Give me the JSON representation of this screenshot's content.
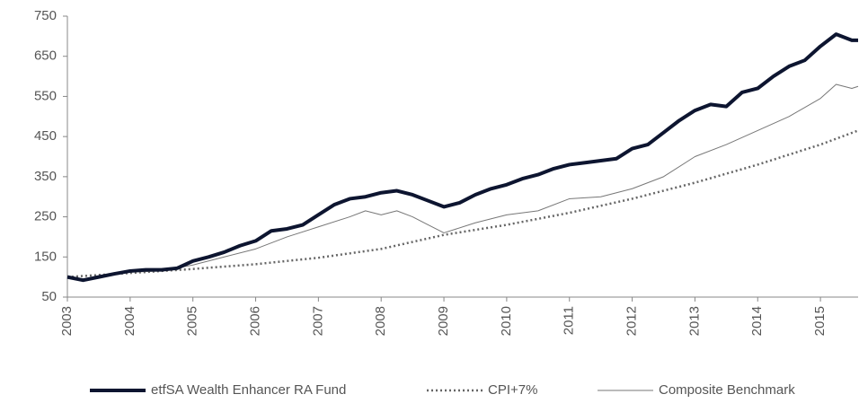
{
  "chart_data": {
    "type": "line",
    "xlim": [
      2003,
      2015.6
    ],
    "xticks": [
      2003,
      2004,
      2005,
      2006,
      2007,
      2008,
      2009,
      2010,
      2011,
      2012,
      2013,
      2014,
      2015
    ],
    "ylim": [
      50,
      750
    ],
    "yticks": [
      50,
      150,
      250,
      350,
      450,
      550,
      650,
      750
    ],
    "legend": "bottom",
    "series": [
      {
        "name": "etfSA Wealth Enhancer RA Fund",
        "color": "#0d1530",
        "linewidth": 4,
        "line_style": "solid",
        "x": [
          2003,
          2003.25,
          2003.5,
          2003.75,
          2004,
          2004.25,
          2004.5,
          2004.75,
          2005,
          2005.25,
          2005.5,
          2005.75,
          2006,
          2006.25,
          2006.5,
          2006.75,
          2007,
          2007.25,
          2007.5,
          2007.75,
          2008,
          2008.25,
          2008.5,
          2008.75,
          2009,
          2009.25,
          2009.5,
          2009.75,
          2010,
          2010.25,
          2010.5,
          2010.75,
          2011,
          2011.25,
          2011.5,
          2011.75,
          2012,
          2012.25,
          2012.5,
          2012.75,
          2013,
          2013.25,
          2013.5,
          2013.75,
          2014,
          2014.25,
          2014.5,
          2014.75,
          2015,
          2015.25,
          2015.5,
          2015.6
        ],
        "values": [
          100,
          92,
          100,
          108,
          115,
          118,
          118,
          122,
          140,
          150,
          162,
          178,
          190,
          215,
          220,
          230,
          255,
          280,
          295,
          300,
          310,
          315,
          305,
          290,
          275,
          285,
          305,
          320,
          330,
          345,
          355,
          370,
          380,
          385,
          390,
          395,
          420,
          430,
          460,
          490,
          515,
          530,
          525,
          560,
          570,
          600,
          625,
          640,
          675,
          705,
          690,
          690
        ]
      },
      {
        "name": "CPI+7%",
        "color": "#666666",
        "linewidth": 2.5,
        "line_style": "dotted",
        "x": [
          2003,
          2004,
          2005,
          2006,
          2007,
          2008,
          2009,
          2010,
          2011,
          2012,
          2013,
          2014,
          2015,
          2015.6
        ],
        "values": [
          100,
          110,
          120,
          132,
          148,
          170,
          205,
          230,
          260,
          295,
          335,
          380,
          430,
          465
        ]
      },
      {
        "name": "Composite Benchmark",
        "color": "#777777",
        "linewidth": 1,
        "line_style": "solid",
        "x": [
          2003,
          2003.25,
          2004,
          2004.5,
          2005,
          2005.5,
          2006,
          2006.5,
          2007,
          2007.5,
          2007.75,
          2008,
          2008.25,
          2008.5,
          2008.75,
          2009,
          2009.5,
          2010,
          2010.5,
          2011,
          2011.5,
          2012,
          2012.5,
          2013,
          2013.5,
          2014,
          2014.5,
          2015,
          2015.25,
          2015.5,
          2015.6
        ],
        "values": [
          100,
          95,
          112,
          115,
          130,
          150,
          170,
          200,
          225,
          250,
          265,
          255,
          265,
          250,
          230,
          210,
          235,
          255,
          265,
          295,
          300,
          320,
          350,
          400,
          430,
          465,
          500,
          545,
          580,
          570,
          575
        ]
      }
    ]
  }
}
